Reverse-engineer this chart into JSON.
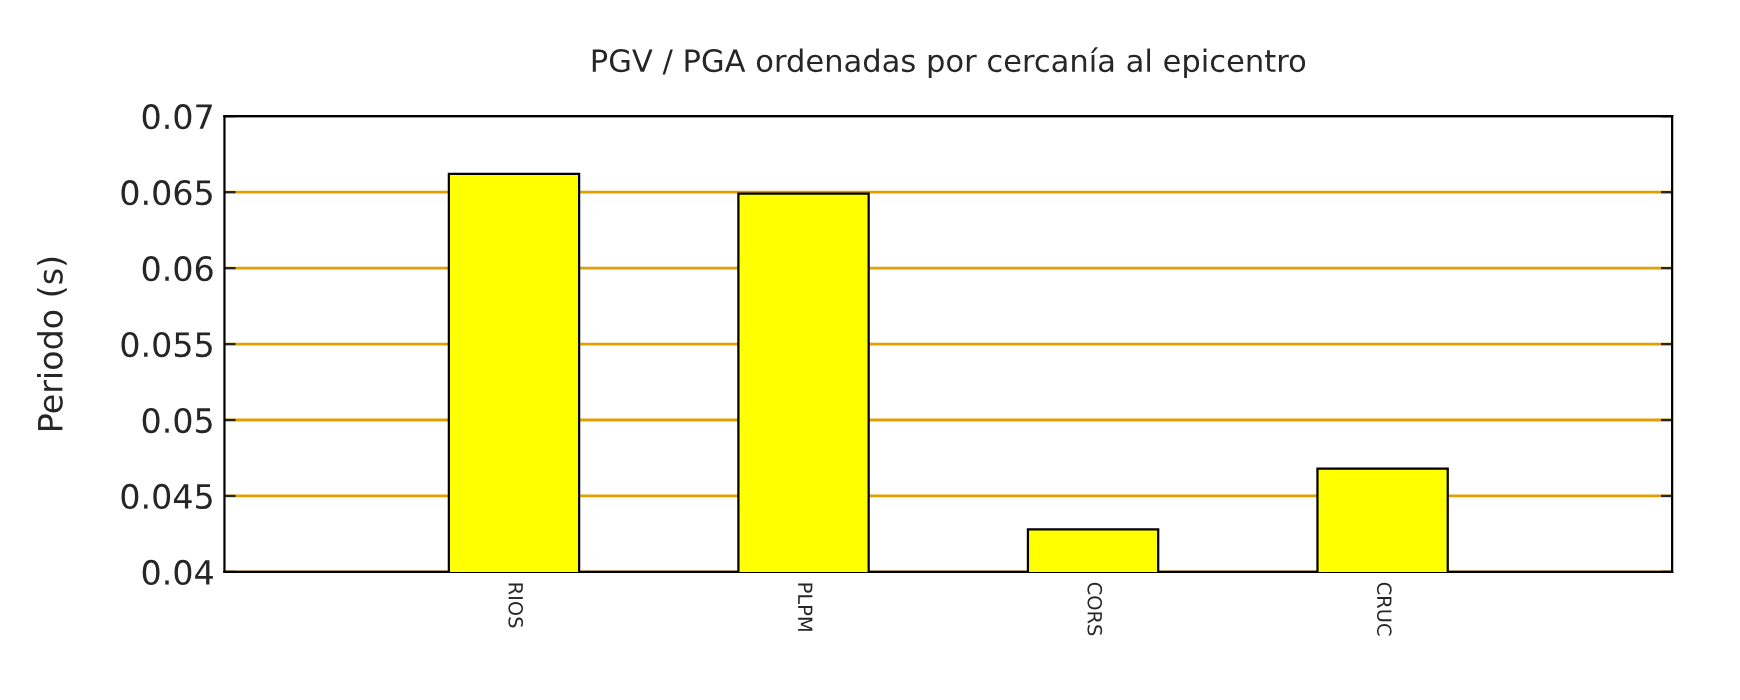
{
  "chart_data": {
    "type": "bar",
    "title": "PGV / PGA ordenadas por cercanía al epicentro",
    "ylabel": "Periodo (s)",
    "categories": [
      "RIOS",
      "PLPM",
      "CORS",
      "CRUC"
    ],
    "values": [
      0.0662,
      0.0649,
      0.0428,
      0.0468
    ],
    "color": "#ffff00",
    "ylim": [
      0.04,
      0.07
    ],
    "yticks": [
      0.04,
      0.045,
      0.05,
      0.055,
      0.06,
      0.065,
      0.07
    ],
    "grid": "y"
  }
}
